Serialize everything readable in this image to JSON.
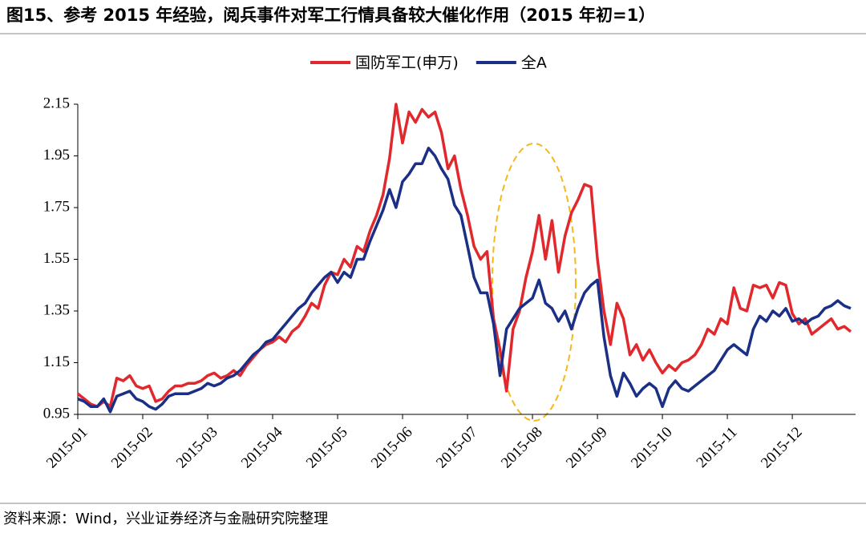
{
  "chart_data": {
    "type": "line",
    "title": "图15、参考 2015 年经验，阅兵事件对军工行情具备较大催化作用（2015 年初=1）",
    "source": "资料来源：Wind，兴业证券经济与金融研究院整理",
    "legend": "top",
    "xlim": [
      0,
      119
    ],
    "xticks": [
      {
        "value": 0,
        "label": "2015-01"
      },
      {
        "value": 10,
        "label": "2015-02"
      },
      {
        "value": 20,
        "label": "2015-03"
      },
      {
        "value": 30,
        "label": "2015-04"
      },
      {
        "value": 40,
        "label": "2015-05"
      },
      {
        "value": 50,
        "label": "2015-06"
      },
      {
        "value": 60,
        "label": "2015-07"
      },
      {
        "value": 70,
        "label": "2015-08"
      },
      {
        "value": 80,
        "label": "2015-09"
      },
      {
        "value": 90,
        "label": "2015-10"
      },
      {
        "value": 100,
        "label": "2015-11"
      },
      {
        "value": 110,
        "label": "2015-12"
      }
    ],
    "ylim": [
      0.95,
      2.15
    ],
    "yticks": [
      0.95,
      1.15,
      1.35,
      1.55,
      1.75,
      1.95,
      2.15
    ],
    "series": [
      {
        "name": "国防军工(申万)",
        "color": "#e0282d",
        "values": [
          1.03,
          1.01,
          0.99,
          0.98,
          1.0,
          0.98,
          1.09,
          1.08,
          1.1,
          1.06,
          1.05,
          1.06,
          1.0,
          1.01,
          1.04,
          1.06,
          1.06,
          1.07,
          1.07,
          1.08,
          1.1,
          1.11,
          1.09,
          1.1,
          1.12,
          1.1,
          1.14,
          1.17,
          1.2,
          1.22,
          1.23,
          1.25,
          1.23,
          1.27,
          1.29,
          1.33,
          1.38,
          1.36,
          1.45,
          1.5,
          1.49,
          1.55,
          1.52,
          1.6,
          1.58,
          1.66,
          1.72,
          1.8,
          1.94,
          2.15,
          2.0,
          2.12,
          2.08,
          2.13,
          2.1,
          2.12,
          2.04,
          1.9,
          1.95,
          1.82,
          1.72,
          1.6,
          1.55,
          1.58,
          1.32,
          1.2,
          1.04,
          1.28,
          1.35,
          1.48,
          1.58,
          1.72,
          1.55,
          1.7,
          1.5,
          1.64,
          1.73,
          1.78,
          1.84,
          1.83,
          1.55,
          1.35,
          1.22,
          1.38,
          1.32,
          1.18,
          1.22,
          1.16,
          1.2,
          1.15,
          1.11,
          1.14,
          1.12,
          1.15,
          1.16,
          1.18,
          1.22,
          1.28,
          1.26,
          1.32,
          1.3,
          1.44,
          1.36,
          1.35,
          1.45,
          1.44,
          1.45,
          1.4,
          1.46,
          1.45,
          1.34,
          1.3,
          1.32,
          1.26,
          1.28,
          1.3,
          1.32,
          1.28,
          1.29,
          1.27
        ]
      },
      {
        "name": "全A",
        "color": "#1a2f85",
        "values": [
          1.01,
          1.0,
          0.98,
          0.98,
          1.01,
          0.96,
          1.02,
          1.03,
          1.04,
          1.01,
          1.0,
          0.98,
          0.97,
          0.99,
          1.02,
          1.03,
          1.03,
          1.03,
          1.04,
          1.05,
          1.07,
          1.06,
          1.07,
          1.09,
          1.1,
          1.12,
          1.15,
          1.18,
          1.2,
          1.23,
          1.24,
          1.27,
          1.3,
          1.33,
          1.36,
          1.38,
          1.42,
          1.45,
          1.48,
          1.5,
          1.46,
          1.5,
          1.48,
          1.55,
          1.55,
          1.62,
          1.68,
          1.74,
          1.82,
          1.75,
          1.85,
          1.88,
          1.92,
          1.92,
          1.98,
          1.95,
          1.9,
          1.86,
          1.76,
          1.72,
          1.6,
          1.48,
          1.42,
          1.42,
          1.3,
          1.1,
          1.28,
          1.32,
          1.36,
          1.38,
          1.4,
          1.47,
          1.38,
          1.36,
          1.31,
          1.35,
          1.28,
          1.36,
          1.42,
          1.45,
          1.47,
          1.25,
          1.1,
          1.02,
          1.11,
          1.07,
          1.02,
          1.05,
          1.07,
          1.05,
          0.98,
          1.05,
          1.08,
          1.05,
          1.04,
          1.06,
          1.08,
          1.1,
          1.12,
          1.16,
          1.2,
          1.22,
          1.2,
          1.18,
          1.28,
          1.33,
          1.31,
          1.35,
          1.33,
          1.36,
          1.31,
          1.32,
          1.3,
          1.32,
          1.33,
          1.36,
          1.37,
          1.39,
          1.37,
          1.36
        ]
      }
    ]
  }
}
